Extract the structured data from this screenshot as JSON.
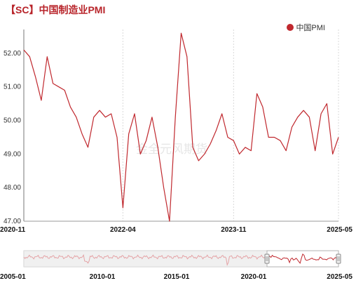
{
  "title": "【SC】中国制造业PMI",
  "legend": {
    "label": "中国PMI",
    "color": "#c0282e"
  },
  "watermark": "金全元风期货",
  "chart_data": {
    "type": "line",
    "title": "【SC】中国制造业PMI",
    "ylim": [
      47,
      52.5
    ],
    "yticks": [
      "52.00",
      "51.00",
      "50.00",
      "49.00",
      "48.00",
      "47.00"
    ],
    "ytick_values": [
      52,
      51,
      50,
      49,
      48,
      47
    ],
    "xtick_labels": [
      "2020-11",
      "2022-04",
      "2023-11",
      "2025-05"
    ],
    "xtick_indices": [
      0,
      17,
      36,
      54
    ],
    "grid": "vertical dashed",
    "series": [
      {
        "name": "中国PMI",
        "color": "#c0282e",
        "x": [
          "2020-11",
          "2020-12",
          "2021-01",
          "2021-02",
          "2021-03",
          "2021-04",
          "2021-05",
          "2021-06",
          "2021-07",
          "2021-08",
          "2021-09",
          "2021-10",
          "2021-11",
          "2021-12",
          "2022-01",
          "2022-02",
          "2022-03",
          "2022-04",
          "2022-05",
          "2022-06",
          "2022-07",
          "2022-08",
          "2022-09",
          "2022-10",
          "2022-11",
          "2022-12",
          "2023-01",
          "2023-02",
          "2023-03",
          "2023-04",
          "2023-05",
          "2023-06",
          "2023-07",
          "2023-08",
          "2023-09",
          "2023-10",
          "2023-11",
          "2023-12",
          "2024-01",
          "2024-02",
          "2024-03",
          "2024-04",
          "2024-05",
          "2024-06",
          "2024-07",
          "2024-08",
          "2024-09",
          "2024-10",
          "2024-11",
          "2024-12",
          "2025-01",
          "2025-02",
          "2025-03",
          "2025-04",
          "2025-05"
        ],
        "values": [
          52.1,
          51.9,
          51.3,
          50.6,
          51.9,
          51.1,
          51.0,
          50.9,
          50.4,
          50.1,
          49.6,
          49.2,
          50.1,
          50.3,
          50.1,
          50.2,
          49.5,
          47.4,
          49.6,
          50.2,
          49.0,
          49.4,
          50.1,
          49.2,
          48.0,
          47.0,
          50.1,
          52.6,
          51.9,
          49.2,
          48.8,
          49.0,
          49.3,
          49.7,
          50.2,
          49.5,
          49.4,
          49.0,
          49.2,
          49.1,
          50.8,
          50.4,
          49.5,
          49.5,
          49.4,
          49.1,
          49.8,
          50.1,
          50.3,
          50.1,
          49.1,
          50.2,
          50.5,
          49.0,
          49.5
        ]
      }
    ],
    "navigator": {
      "xtick_labels": [
        "2005-01",
        "2010-01",
        "2015-01",
        "2020-01",
        "2025-05"
      ]
    }
  }
}
